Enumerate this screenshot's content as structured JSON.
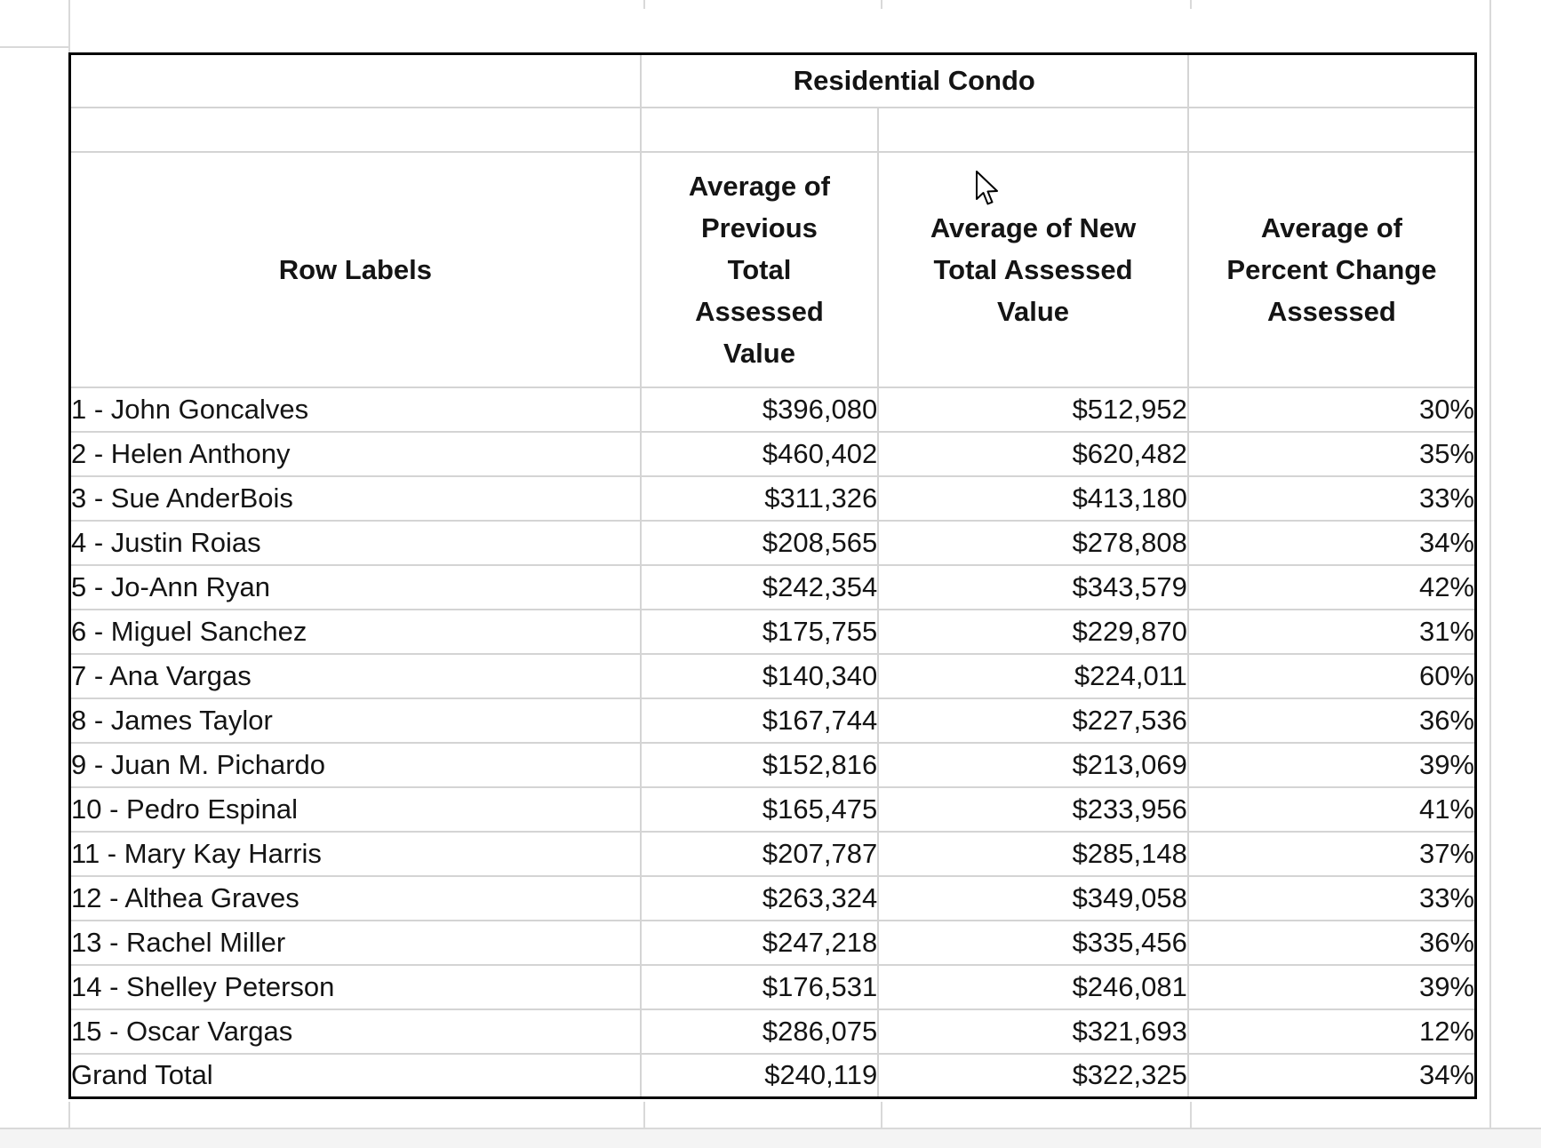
{
  "table": {
    "title": "Residential Condo",
    "columns": {
      "row_labels": [
        "Row Labels"
      ],
      "prev": [
        "Average of",
        "Previous",
        "Total",
        "Assessed",
        "Value"
      ],
      "new": [
        "Average of New",
        "Total Assessed",
        "Value"
      ],
      "pct": [
        "Average of",
        "Percent Change",
        "Assessed"
      ]
    },
    "rows": [
      {
        "label": "1 - John Goncalves",
        "prev": "$396,080",
        "new": "$512,952",
        "pct": "30%"
      },
      {
        "label": "2 - Helen Anthony",
        "prev": "$460,402",
        "new": "$620,482",
        "pct": "35%"
      },
      {
        "label": "3 - Sue AnderBois",
        "prev": "$311,326",
        "new": "$413,180",
        "pct": "33%"
      },
      {
        "label": "4 - Justin Roias",
        "prev": "$208,565",
        "new": "$278,808",
        "pct": "34%"
      },
      {
        "label": "5 - Jo-Ann Ryan",
        "prev": "$242,354",
        "new": "$343,579",
        "pct": "42%"
      },
      {
        "label": "6 - Miguel Sanchez",
        "prev": "$175,755",
        "new": "$229,870",
        "pct": "31%"
      },
      {
        "label": "7 - Ana Vargas",
        "prev": "$140,340",
        "new": "$224,011",
        "pct": "60%"
      },
      {
        "label": "8 - James Taylor",
        "prev": "$167,744",
        "new": "$227,536",
        "pct": "36%"
      },
      {
        "label": "9 - Juan M. Pichardo",
        "prev": "$152,816",
        "new": "$213,069",
        "pct": "39%"
      },
      {
        "label": "10 - Pedro Espinal",
        "prev": "$165,475",
        "new": "$233,956",
        "pct": "41%"
      },
      {
        "label": "11 - Mary Kay Harris",
        "prev": "$207,787",
        "new": "$285,148",
        "pct": "37%"
      },
      {
        "label": "12 - Althea Graves",
        "prev": "$263,324",
        "new": "$349,058",
        "pct": "33%"
      },
      {
        "label": "13 - Rachel Miller",
        "prev": "$247,218",
        "new": "$335,456",
        "pct": "36%"
      },
      {
        "label": "14 - Shelley Peterson",
        "prev": "$176,531",
        "new": "$246,081",
        "pct": "39%"
      },
      {
        "label": "15 - Oscar Vargas",
        "prev": "$286,075",
        "new": "$321,693",
        "pct": "12%"
      }
    ],
    "grand_total": {
      "label": "Grand Total",
      "prev": "$240,119",
      "new": "$322,325",
      "pct": "34%"
    }
  },
  "icons": {
    "cursor_icon": "arrow-pointer"
  },
  "colors": {
    "background": "#ffffff",
    "table_border": "#000000",
    "cell_gridline": "#d4d4d4",
    "sheet_gridline": "#d9d9d9",
    "text": "#141414",
    "footer_strip": "#f4f4f4"
  }
}
